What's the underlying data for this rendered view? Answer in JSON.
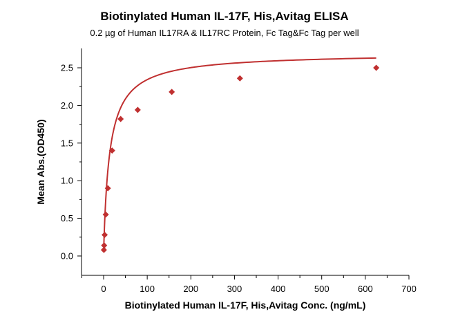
{
  "chart_data": {
    "type": "scatter",
    "title": "Biotinylated Human IL-17F, His,Avitag ELISA",
    "subtitle": "0.2 µg of Human IL17RA & IL17RC Protein, Fc Tag&Fc Tag per well",
    "xlabel": "Biotinylated Human IL-17F, His,Avitag Conc. (ng/mL)",
    "ylabel": "Mean Abs.(OD450)",
    "xlim": [
      -50,
      700
    ],
    "ylim": [
      -0.2,
      2.75
    ],
    "xticks": [
      "0",
      "100",
      "200",
      "300",
      "400",
      "500",
      "600",
      "700"
    ],
    "yticks": [
      "0.0",
      "0.5",
      "1.0",
      "1.5",
      "2.0",
      "2.5"
    ],
    "grid": false,
    "series": [
      {
        "name": "Biotinylated Human IL-17F, His,Avitag",
        "color": "#c03030",
        "marker": "diamond",
        "fit": "four-parameter curve",
        "x": [
          0.61,
          1.22,
          2.44,
          4.88,
          9.77,
          19.53,
          39.06,
          78.13,
          156.25,
          312.5,
          625
        ],
        "y": [
          0.08,
          0.14,
          0.28,
          0.55,
          0.9,
          1.4,
          1.82,
          1.94,
          2.18,
          2.36,
          2.5
        ]
      }
    ]
  }
}
